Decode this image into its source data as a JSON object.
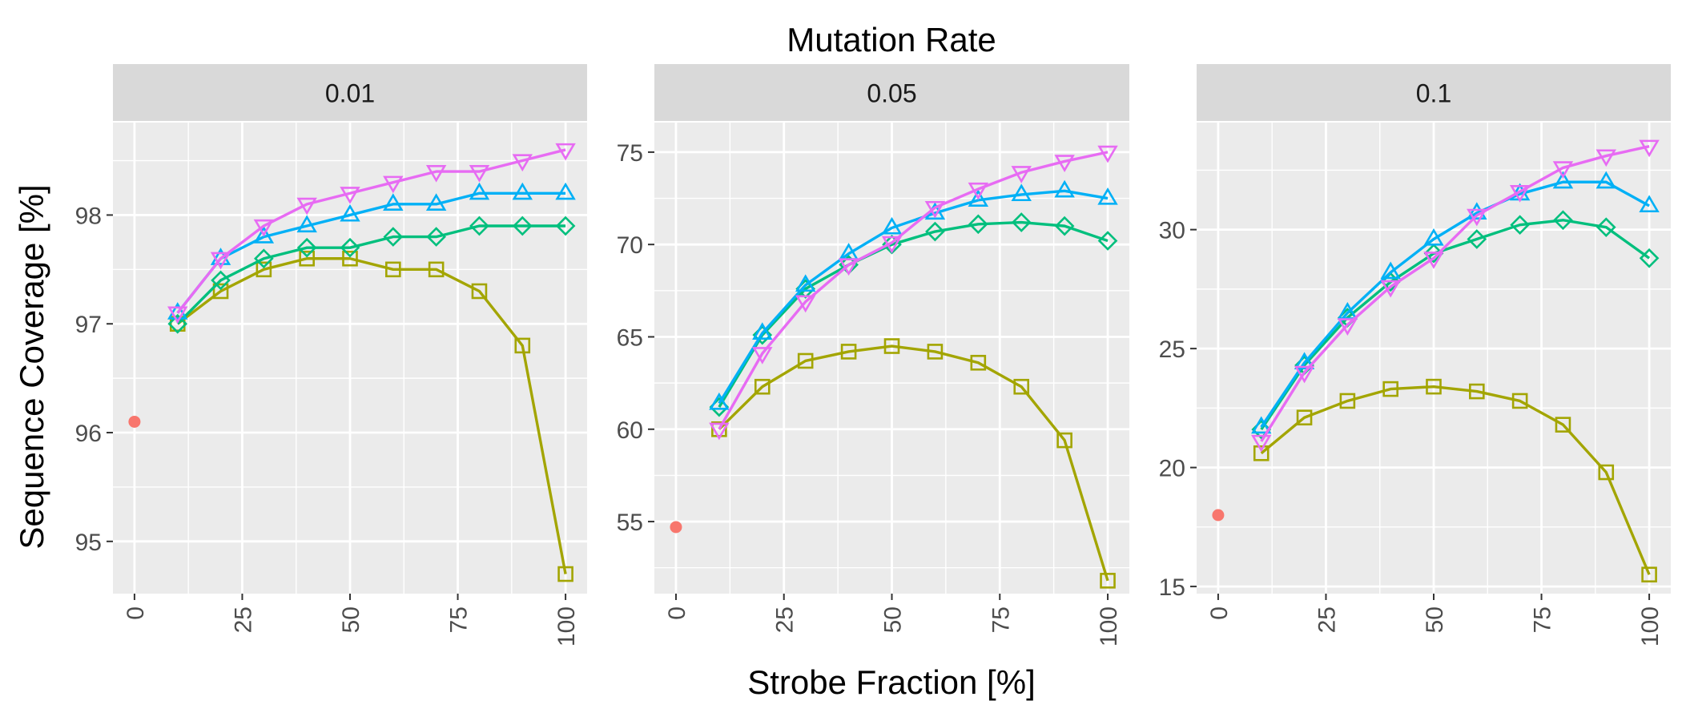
{
  "figure": {
    "title": "Mutation Rate",
    "xlabel": "Strobe Fraction [%]",
    "ylabel": "Sequence Coverage [%]"
  },
  "chart_data": [
    {
      "type": "line",
      "facet": "0.01",
      "xlim": [
        -5,
        105
      ],
      "ylim": [
        94.52,
        98.85
      ],
      "xticks": [
        0,
        25,
        50,
        75,
        100
      ],
      "yticks": [
        95,
        96,
        97,
        98
      ],
      "grid": true,
      "baseline": {
        "x": 0,
        "y": 96.1,
        "color": "#f8766d"
      },
      "series": [
        {
          "color": "#a3a500",
          "marker": "square",
          "x": [
            10,
            20,
            30,
            40,
            50,
            60,
            70,
            80,
            90,
            100
          ],
          "y": [
            97.0,
            97.3,
            97.5,
            97.6,
            97.6,
            97.5,
            97.5,
            97.3,
            96.8,
            94.7
          ]
        },
        {
          "color": "#00bf7d",
          "marker": "diamond",
          "x": [
            10,
            20,
            30,
            40,
            50,
            60,
            70,
            80,
            90,
            100
          ],
          "y": [
            97.0,
            97.4,
            97.6,
            97.7,
            97.7,
            97.8,
            97.8,
            97.9,
            97.9,
            97.9
          ]
        },
        {
          "color": "#00b0f6",
          "marker": "triangle-up",
          "x": [
            10,
            20,
            30,
            40,
            50,
            60,
            70,
            80,
            90,
            100
          ],
          "y": [
            97.1,
            97.6,
            97.8,
            97.9,
            98.0,
            98.1,
            98.1,
            98.2,
            98.2,
            98.2
          ]
        },
        {
          "color": "#e76bf3",
          "marker": "triangle-down",
          "x": [
            10,
            20,
            30,
            40,
            50,
            60,
            70,
            80,
            90,
            100
          ],
          "y": [
            97.1,
            97.6,
            97.9,
            98.1,
            98.2,
            98.3,
            98.4,
            98.4,
            98.5,
            98.6
          ]
        }
      ]
    },
    {
      "type": "line",
      "facet": "0.05",
      "xlim": [
        -5,
        105
      ],
      "ylim": [
        51.1,
        76.6
      ],
      "xticks": [
        0,
        25,
        50,
        75,
        100
      ],
      "yticks": [
        55,
        60,
        65,
        70,
        75
      ],
      "grid": true,
      "baseline": {
        "x": 0,
        "y": 54.7,
        "color": "#f8766d"
      },
      "series": [
        {
          "color": "#a3a500",
          "marker": "square",
          "x": [
            10,
            20,
            30,
            40,
            50,
            60,
            70,
            80,
            90,
            100
          ],
          "y": [
            60.0,
            62.3,
            63.7,
            64.2,
            64.5,
            64.2,
            63.6,
            62.3,
            59.4,
            51.8
          ]
        },
        {
          "color": "#00bf7d",
          "marker": "diamond",
          "x": [
            10,
            20,
            30,
            40,
            50,
            60,
            70,
            80,
            90,
            100
          ],
          "y": [
            61.2,
            65.1,
            67.6,
            68.9,
            70.0,
            70.7,
            71.1,
            71.2,
            71.0,
            70.2
          ]
        },
        {
          "color": "#00b0f6",
          "marker": "triangle-up",
          "x": [
            10,
            20,
            30,
            40,
            50,
            60,
            70,
            80,
            90,
            100
          ],
          "y": [
            61.4,
            65.2,
            67.8,
            69.5,
            70.9,
            71.7,
            72.4,
            72.7,
            72.9,
            72.5
          ]
        },
        {
          "color": "#e76bf3",
          "marker": "triangle-down",
          "x": [
            10,
            20,
            30,
            40,
            50,
            60,
            70,
            80,
            90,
            100
          ],
          "y": [
            60.0,
            64.1,
            66.9,
            68.9,
            70.1,
            72.0,
            73.0,
            73.9,
            74.5,
            75.0
          ]
        }
      ]
    },
    {
      "type": "line",
      "facet": "0.1",
      "xlim": [
        -5,
        105
      ],
      "ylim": [
        14.7,
        34.5
      ],
      "xticks": [
        0,
        25,
        50,
        75,
        100
      ],
      "yticks": [
        15,
        20,
        25,
        30
      ],
      "grid": true,
      "baseline": {
        "x": 0,
        "y": 18.0,
        "color": "#f8766d"
      },
      "series": [
        {
          "color": "#a3a500",
          "marker": "square",
          "x": [
            10,
            20,
            30,
            40,
            50,
            60,
            70,
            80,
            90,
            100
          ],
          "y": [
            20.6,
            22.1,
            22.8,
            23.3,
            23.4,
            23.2,
            22.8,
            21.8,
            19.8,
            15.5
          ]
        },
        {
          "color": "#00bf7d",
          "marker": "diamond",
          "x": [
            10,
            20,
            30,
            40,
            50,
            60,
            70,
            80,
            90,
            100
          ],
          "y": [
            21.6,
            24.3,
            26.3,
            27.8,
            29.0,
            29.6,
            30.2,
            30.4,
            30.1,
            28.8
          ]
        },
        {
          "color": "#00b0f6",
          "marker": "triangle-up",
          "x": [
            10,
            20,
            30,
            40,
            50,
            60,
            70,
            80,
            90,
            100
          ],
          "y": [
            21.7,
            24.4,
            26.5,
            28.2,
            29.6,
            30.7,
            31.5,
            32.0,
            32.0,
            31.0
          ]
        },
        {
          "color": "#e76bf3",
          "marker": "triangle-down",
          "x": [
            10,
            20,
            30,
            40,
            50,
            60,
            70,
            80,
            90,
            100
          ],
          "y": [
            21.1,
            24.0,
            26.0,
            27.6,
            28.8,
            30.6,
            31.6,
            32.6,
            33.1,
            33.5
          ]
        }
      ]
    }
  ]
}
